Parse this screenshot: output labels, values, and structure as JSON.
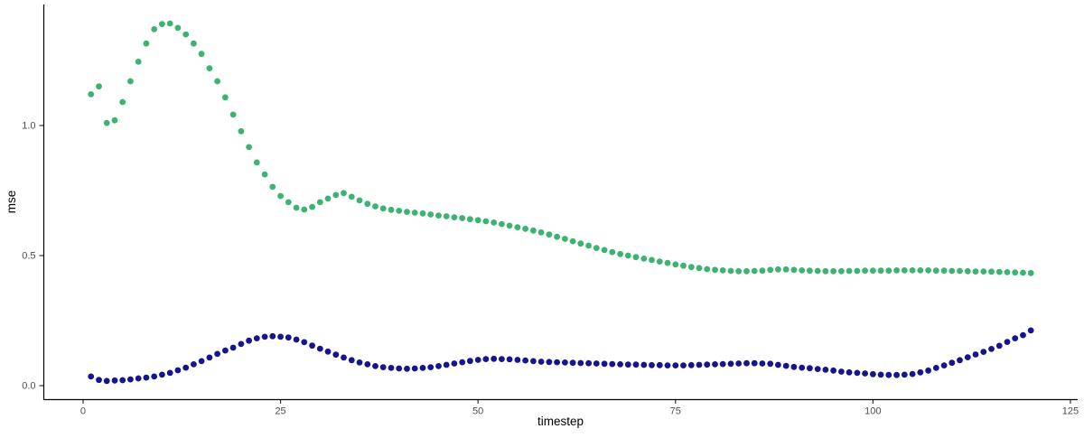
{
  "chart_data": {
    "type": "scatter",
    "title": "",
    "xlabel": "timestep",
    "ylabel": "mse",
    "xlim": [
      -5.03,
      125.92
    ],
    "ylim": [
      -0.052,
      1.465
    ],
    "grid": false,
    "legend": "none",
    "background": "#ffffff",
    "axis_color": "#000000",
    "tick_color": "#333333",
    "tick_label_color": "#4d4d4d",
    "axis_title_color": "#000000",
    "point_radius": 3.4,
    "x_ticks": {
      "values": [
        0,
        25,
        50,
        75,
        100,
        125
      ],
      "labels": [
        "0",
        "25",
        "50",
        "75",
        "100",
        "125"
      ]
    },
    "y_ticks": {
      "values": [
        0.0,
        0.5,
        1.0
      ],
      "labels": [
        "0.0",
        "0.5",
        "1.0"
      ]
    },
    "series": [
      {
        "name": "green-series",
        "color": "#3cb371",
        "x": [
          1,
          2,
          3,
          4,
          5,
          6,
          7,
          8,
          9,
          10,
          11,
          12,
          13,
          14,
          15,
          16,
          17,
          18,
          19,
          20,
          21,
          22,
          23,
          24,
          25,
          26,
          27,
          28,
          29,
          30,
          31,
          32,
          33,
          34,
          35,
          36,
          37,
          38,
          39,
          40,
          41,
          42,
          43,
          44,
          45,
          46,
          47,
          48,
          49,
          50,
          51,
          52,
          53,
          54,
          55,
          56,
          57,
          58,
          59,
          60,
          61,
          62,
          63,
          64,
          65,
          66,
          67,
          68,
          69,
          70,
          71,
          72,
          73,
          74,
          75,
          76,
          77,
          78,
          79,
          80,
          81,
          82,
          83,
          84,
          85,
          86,
          87,
          88,
          89,
          90,
          91,
          92,
          93,
          94,
          95,
          96,
          97,
          98,
          99,
          100,
          101,
          102,
          103,
          104,
          105,
          106,
          107,
          108,
          109,
          110,
          111,
          112,
          113,
          114,
          115,
          116,
          117,
          118,
          119,
          120
        ],
        "y": [
          1.12,
          1.15,
          1.01,
          1.02,
          1.09,
          1.17,
          1.245,
          1.315,
          1.37,
          1.39,
          1.392,
          1.375,
          1.35,
          1.315,
          1.275,
          1.22,
          1.17,
          1.108,
          1.042,
          0.978,
          0.917,
          0.858,
          0.812,
          0.764,
          0.729,
          0.705,
          0.684,
          0.677,
          0.687,
          0.705,
          0.719,
          0.733,
          0.74,
          0.726,
          0.712,
          0.699,
          0.689,
          0.681,
          0.676,
          0.672,
          0.668,
          0.665,
          0.662,
          0.658,
          0.654,
          0.651,
          0.647,
          0.644,
          0.64,
          0.636,
          0.632,
          0.627,
          0.621,
          0.615,
          0.609,
          0.603,
          0.596,
          0.589,
          0.581,
          0.572,
          0.564,
          0.555,
          0.546,
          0.538,
          0.529,
          0.521,
          0.513,
          0.506,
          0.5,
          0.494,
          0.488,
          0.483,
          0.477,
          0.472,
          0.466,
          0.461,
          0.456,
          0.452,
          0.448,
          0.445,
          0.443,
          0.441,
          0.44,
          0.44,
          0.441,
          0.442,
          0.445,
          0.447,
          0.447,
          0.445,
          0.443,
          0.442,
          0.441,
          0.44,
          0.44,
          0.44,
          0.441,
          0.441,
          0.442,
          0.442,
          0.442,
          0.442,
          0.443,
          0.443,
          0.443,
          0.443,
          0.443,
          0.442,
          0.442,
          0.441,
          0.441,
          0.44,
          0.439,
          0.439,
          0.438,
          0.437,
          0.436,
          0.435,
          0.434,
          0.433
        ]
      },
      {
        "name": "navy-series",
        "color": "#15158e",
        "x": [
          1,
          2,
          3,
          4,
          5,
          6,
          7,
          8,
          9,
          10,
          11,
          12,
          13,
          14,
          15,
          16,
          17,
          18,
          19,
          20,
          21,
          22,
          23,
          24,
          25,
          26,
          27,
          28,
          29,
          30,
          31,
          32,
          33,
          34,
          35,
          36,
          37,
          38,
          39,
          40,
          41,
          42,
          43,
          44,
          45,
          46,
          47,
          48,
          49,
          50,
          51,
          52,
          53,
          54,
          55,
          56,
          57,
          58,
          59,
          60,
          61,
          62,
          63,
          64,
          65,
          66,
          67,
          68,
          69,
          70,
          71,
          72,
          73,
          74,
          75,
          76,
          77,
          78,
          79,
          80,
          81,
          82,
          83,
          84,
          85,
          86,
          87,
          88,
          89,
          90,
          91,
          92,
          93,
          94,
          95,
          96,
          97,
          98,
          99,
          100,
          101,
          102,
          103,
          104,
          105,
          106,
          107,
          108,
          109,
          110,
          111,
          112,
          113,
          114,
          115,
          116,
          117,
          118,
          119,
          120
        ],
        "y": [
          0.035,
          0.022,
          0.018,
          0.02,
          0.021,
          0.024,
          0.028,
          0.031,
          0.035,
          0.042,
          0.049,
          0.059,
          0.069,
          0.082,
          0.094,
          0.108,
          0.122,
          0.135,
          0.146,
          0.16,
          0.173,
          0.182,
          0.188,
          0.19,
          0.188,
          0.185,
          0.177,
          0.167,
          0.154,
          0.142,
          0.131,
          0.119,
          0.108,
          0.098,
          0.089,
          0.082,
          0.075,
          0.071,
          0.068,
          0.066,
          0.065,
          0.066,
          0.068,
          0.071,
          0.075,
          0.08,
          0.085,
          0.09,
          0.095,
          0.099,
          0.102,
          0.103,
          0.102,
          0.101,
          0.099,
          0.097,
          0.094,
          0.092,
          0.091,
          0.09,
          0.089,
          0.088,
          0.087,
          0.086,
          0.085,
          0.084,
          0.083,
          0.082,
          0.081,
          0.081,
          0.08,
          0.079,
          0.079,
          0.078,
          0.078,
          0.078,
          0.079,
          0.08,
          0.081,
          0.082,
          0.083,
          0.084,
          0.085,
          0.086,
          0.086,
          0.085,
          0.084,
          0.08,
          0.076,
          0.072,
          0.069,
          0.067,
          0.064,
          0.061,
          0.058,
          0.054,
          0.051,
          0.049,
          0.047,
          0.044,
          0.042,
          0.041,
          0.041,
          0.042,
          0.045,
          0.051,
          0.058,
          0.068,
          0.078,
          0.088,
          0.098,
          0.109,
          0.12,
          0.13,
          0.141,
          0.153,
          0.168,
          0.182,
          0.194,
          0.212
        ]
      }
    ]
  }
}
